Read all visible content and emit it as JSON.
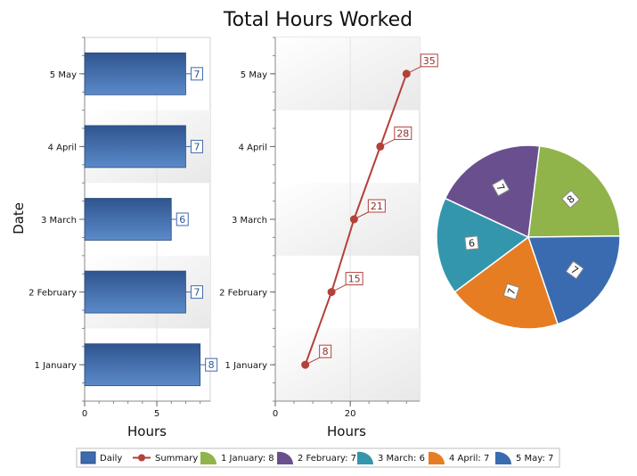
{
  "title": "Total Hours Worked",
  "chart_data": [
    {
      "type": "bar",
      "orientation": "horizontal",
      "name": "Daily",
      "categories": [
        "1 January",
        "2 February",
        "3 March",
        "4 April",
        "5 May"
      ],
      "values": [
        8,
        7,
        6,
        7,
        7
      ],
      "xlabel": "Hours",
      "ylabel": "Date",
      "xlim": [
        0,
        8.7
      ],
      "xticks": [
        0,
        5
      ],
      "xtick_labels": [
        "0",
        "5"
      ],
      "color": "#3d6aaf"
    },
    {
      "type": "line",
      "name": "Summary",
      "categories": [
        "1 January",
        "2 February",
        "3 March",
        "4 April",
        "5 May"
      ],
      "values": [
        8,
        15,
        21,
        28,
        35
      ],
      "xlabel": "Hours",
      "xlim": [
        0,
        38.5
      ],
      "xticks": [
        0,
        20
      ],
      "xtick_labels": [
        "0",
        "20"
      ],
      "color": "#b5403a"
    },
    {
      "type": "pie",
      "labels": [
        "1 January",
        "2 February",
        "3 March",
        "4 April",
        "5 May"
      ],
      "values": [
        8,
        7,
        6,
        7,
        7
      ],
      "value_labels": [
        "8",
        "7",
        "6",
        "7",
        "7"
      ],
      "colors": [
        "#90b44a",
        "#6a4f8f",
        "#3496ad",
        "#e77d22",
        "#3a6bb0"
      ],
      "color_order": [
        "green",
        "purple",
        "teal",
        "orange",
        "blue"
      ]
    }
  ],
  "legend": {
    "position": "bottom",
    "items": [
      {
        "label": "Daily",
        "kind": "bar",
        "color": "#3d6aaf"
      },
      {
        "label": "Summary",
        "kind": "line",
        "color": "#b5403a"
      },
      {
        "label": "1 January: 8",
        "kind": "slice",
        "color": "#90b44a"
      },
      {
        "label": "2 February: 7",
        "kind": "slice",
        "color": "#6a4f8f"
      },
      {
        "label": "3 March: 6",
        "kind": "slice",
        "color": "#3496ad"
      },
      {
        "label": "4 April: 7",
        "kind": "slice",
        "color": "#e77d22"
      },
      {
        "label": "5 May: 7",
        "kind": "slice",
        "color": "#3a6bb0"
      }
    ]
  }
}
